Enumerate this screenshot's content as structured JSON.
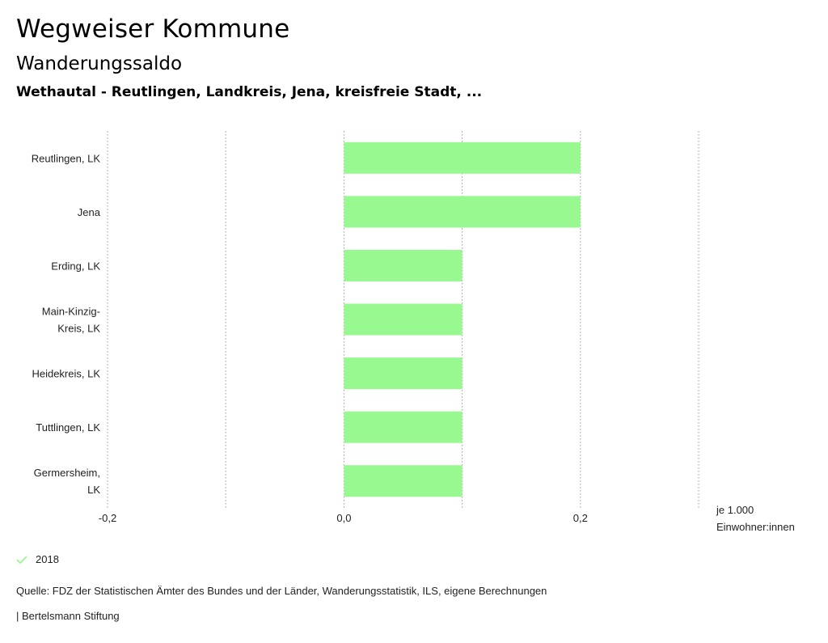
{
  "header": {
    "title": "Wegweiser Kommune",
    "subtitle": "Wanderungssaldo",
    "region": "Wethautal - Reutlingen, Landkreis, Jena, kreisfreie Stadt, ..."
  },
  "chart_data": {
    "type": "bar",
    "orientation": "horizontal",
    "categories": [
      [
        "Reutlingen, LK"
      ],
      [
        "Jena"
      ],
      [
        "Erding, LK"
      ],
      [
        "Main-Kinzig-",
        "Kreis, LK"
      ],
      [
        "Heidekreis, LK"
      ],
      [
        "Tuttlingen, LK"
      ],
      [
        "Germersheim,",
        "LK"
      ]
    ],
    "series": [
      {
        "name": "2018",
        "values": [
          0.2,
          0.2,
          0.1,
          0.1,
          0.1,
          0.1,
          0.1
        ]
      }
    ],
    "xlim": [
      -0.2,
      0.3
    ],
    "xticks": [
      -0.2,
      -0.1,
      0.0,
      0.1,
      0.2,
      0.3
    ],
    "xtick_labels": [
      "-0,2",
      "",
      "0,0",
      "",
      "0,2",
      ""
    ],
    "unit_label": [
      "je 1.000",
      "Einwohner:innen"
    ],
    "bar_color": "#99f991",
    "grid": true
  },
  "legend": {
    "label": "2018",
    "color": "#99f991"
  },
  "footer": {
    "source": "Quelle: FDZ der Statistischen Ämter des Bundes und der Länder, Wanderungsstatistik, ILS, eigene Berechnungen",
    "credit": "| Bertelsmann Stiftung"
  }
}
